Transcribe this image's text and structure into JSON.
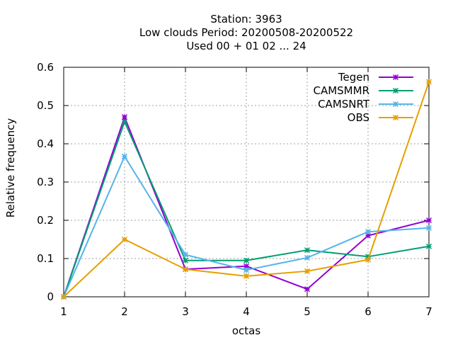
{
  "chart_data": {
    "type": "line",
    "title_lines": [
      "Station:     3963",
      "Low clouds  Period: 20200508-20200522",
      "Used  00 + 01 02 ... 24"
    ],
    "xlabel": "octas",
    "ylabel": "Relative frequency",
    "xlim": [
      1,
      7
    ],
    "ylim": [
      0,
      0.6
    ],
    "x_ticks": [
      1,
      2,
      3,
      4,
      5,
      6,
      7
    ],
    "y_ticks": [
      0,
      0.1,
      0.2,
      0.3,
      0.4,
      0.5,
      0.6
    ],
    "y_tick_labels": [
      "0",
      "0.1",
      "0.2",
      "0.3",
      "0.4",
      "0.5",
      "0.6"
    ],
    "grid": true,
    "legend_position": "top-right",
    "x": [
      1,
      2,
      3,
      4,
      5,
      6,
      7
    ],
    "series": [
      {
        "name": "Tegen",
        "color": "#9400d3",
        "values": [
          0,
          0.47,
          0.072,
          0.08,
          0.02,
          0.16,
          0.2
        ]
      },
      {
        "name": "CAMSMMR",
        "color": "#009e73",
        "values": [
          0,
          0.458,
          0.095,
          0.095,
          0.122,
          0.105,
          0.132
        ]
      },
      {
        "name": "CAMSNRT",
        "color": "#56b4e9",
        "values": [
          0,
          0.367,
          0.11,
          0.07,
          0.102,
          0.17,
          0.18
        ]
      },
      {
        "name": "OBS",
        "color": "#e69f00",
        "values": [
          0,
          0.15,
          0.072,
          0.054,
          0.067,
          0.097,
          0.562
        ]
      }
    ]
  }
}
